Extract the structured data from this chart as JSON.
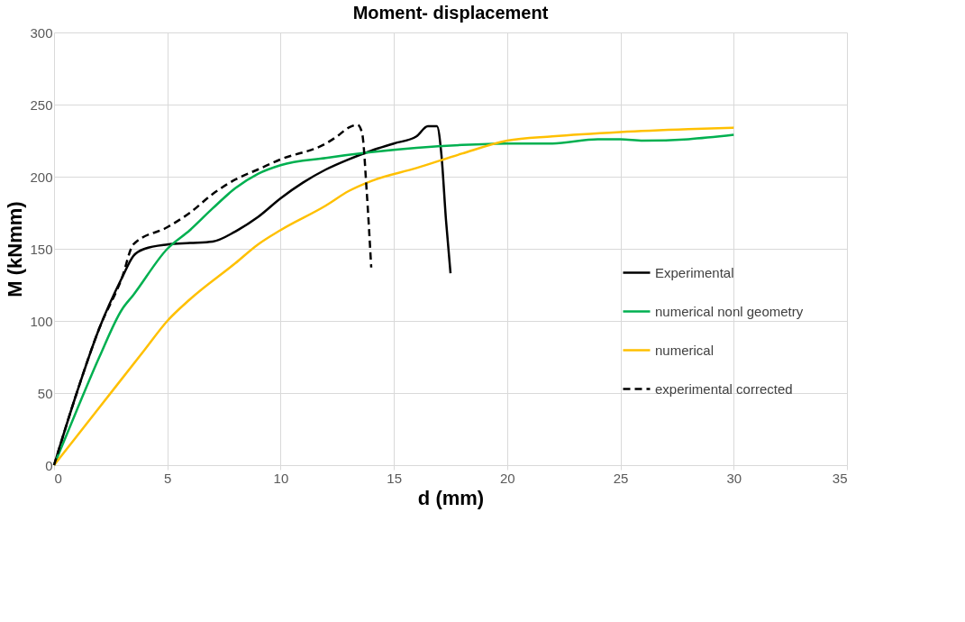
{
  "chart_data": {
    "type": "line",
    "title": "Moment- displacement",
    "xlabel": "d (mm)",
    "ylabel": "M (kNmm)",
    "xlim": [
      0,
      35
    ],
    "xticks": [
      0,
      5,
      10,
      15,
      20,
      25,
      30,
      35
    ],
    "ylim": [
      0,
      300
    ],
    "yticks": [
      0,
      50,
      100,
      150,
      200,
      250,
      300
    ],
    "grid": true,
    "legend": "right",
    "series": [
      {
        "name": "Experimental",
        "color": "#000000",
        "line_style": "solid",
        "x": [
          0,
          1,
          2,
          3,
          3.5,
          4,
          5,
          6,
          7,
          8,
          9,
          10,
          11,
          12,
          13,
          14,
          15,
          16,
          16.5,
          16.9,
          17.1,
          17.3,
          17.5
        ],
        "values": [
          0,
          50,
          95,
          130,
          145,
          150,
          153,
          154,
          155,
          162,
          172,
          185,
          196,
          205,
          212,
          218,
          223,
          228,
          235,
          235,
          215,
          170,
          133
        ]
      },
      {
        "name": "numerical nonl geometry",
        "color": "#00b050",
        "line_style": "solid",
        "x": [
          0,
          1,
          2,
          3,
          3.5,
          5,
          6,
          7,
          8,
          9,
          10,
          12,
          14,
          16,
          18,
          20,
          22,
          24,
          25,
          26,
          28,
          30
        ],
        "values": [
          0,
          38,
          75,
          108,
          118,
          150,
          163,
          178,
          192,
          202,
          208,
          213,
          217,
          220,
          222,
          223,
          223,
          226,
          226,
          225,
          226,
          229
        ]
      },
      {
        "name": "numerical",
        "color": "#ffc000",
        "line_style": "solid",
        "x": [
          0,
          2,
          4,
          5,
          6,
          8,
          9,
          10,
          12,
          13,
          14,
          16,
          18,
          20,
          22,
          25,
          28,
          30
        ],
        "values": [
          0,
          40,
          80,
          100,
          115,
          140,
          153,
          163,
          180,
          190,
          197,
          206,
          216,
          225,
          228,
          231,
          233,
          234
        ]
      },
      {
        "name": "experimental corrected",
        "color": "#000000",
        "line_style": "dashed",
        "x": [
          0,
          1,
          2,
          3,
          3.5,
          5,
          6,
          7,
          8,
          9,
          10,
          12,
          12.5,
          13,
          13.4,
          13.6,
          13.8,
          14
        ],
        "values": [
          0,
          50,
          95,
          130,
          153,
          165,
          175,
          188,
          198,
          205,
          212,
          223,
          228,
          234,
          236,
          230,
          190,
          137
        ]
      }
    ]
  }
}
